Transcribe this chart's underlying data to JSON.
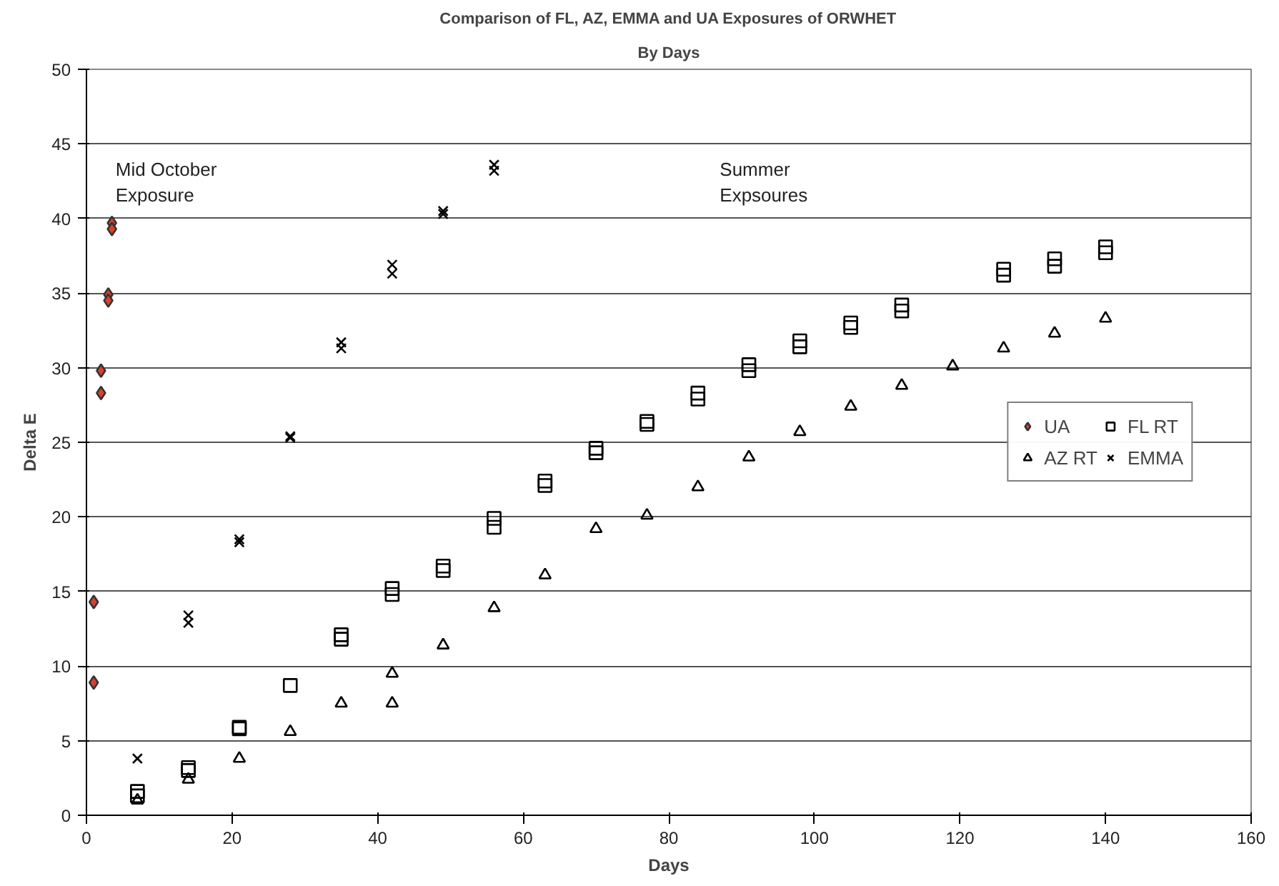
{
  "chart_data": {
    "type": "scatter",
    "title": "Comparison of FL, AZ, EMMA and UA Exposures of ORWHET",
    "subtitle": "By Days",
    "xlabel": "Days",
    "ylabel": "Delta E",
    "xlim": [
      0,
      160
    ],
    "xticks": [
      0,
      20,
      40,
      60,
      80,
      100,
      120,
      140,
      160
    ],
    "ylim": [
      0,
      50
    ],
    "yticks": [
      0,
      5,
      10,
      15,
      20,
      25,
      30,
      35,
      40,
      45,
      50
    ],
    "grid": "y",
    "legend": "right",
    "annotations": [
      "Mid October\nExposure",
      "Summer\nExpsoures"
    ],
    "series": [
      {
        "name": "UA",
        "color": "#d9402b",
        "marker": "diamond",
        "x": [
          1,
          1,
          2,
          2,
          3,
          3,
          3.5,
          3.5
        ],
        "values": [
          14.3,
          8.9,
          29.8,
          28.3,
          34.9,
          34.5,
          39.7,
          39.3
        ]
      },
      {
        "name": "FL RT",
        "color": "#000000",
        "marker": "square",
        "x": [
          7,
          7,
          14,
          14,
          21,
          21,
          28,
          35,
          35,
          42,
          42,
          49,
          49,
          56,
          56,
          63,
          63,
          70,
          70,
          77,
          77,
          84,
          84,
          91,
          91,
          98,
          98,
          105,
          105,
          112,
          112,
          126,
          126,
          133,
          133,
          140,
          140
        ],
        "values": [
          1.6,
          1.3,
          3.2,
          3.0,
          5.9,
          5.8,
          8.7,
          12.1,
          11.8,
          15.2,
          14.8,
          16.7,
          16.4,
          19.9,
          19.3,
          22.4,
          22.1,
          24.6,
          24.3,
          26.4,
          26.2,
          28.3,
          27.9,
          30.2,
          29.8,
          31.8,
          31.4,
          33.0,
          32.7,
          34.2,
          33.8,
          36.6,
          36.2,
          37.3,
          36.8,
          38.1,
          37.7
        ]
      },
      {
        "name": "AZ RT",
        "color": "#000000",
        "marker": "triangle",
        "x": [
          7,
          14,
          21,
          28,
          35,
          42,
          42,
          49,
          56,
          63,
          70,
          77,
          84,
          91,
          98,
          105,
          112,
          119,
          126,
          133,
          140
        ],
        "values": [
          1.0,
          2.4,
          3.8,
          5.6,
          7.5,
          9.5,
          7.5,
          11.4,
          13.9,
          16.1,
          19.2,
          20.1,
          22.0,
          24.0,
          25.7,
          27.4,
          28.8,
          30.1,
          31.3,
          32.3,
          33.3
        ]
      },
      {
        "name": "EMMA",
        "color": "#000000",
        "marker": "cross",
        "x": [
          7,
          14,
          14,
          21,
          21,
          28,
          28,
          35,
          35,
          42,
          42,
          49,
          49,
          56,
          56
        ],
        "values": [
          3.8,
          13.4,
          12.9,
          18.5,
          18.3,
          25.4,
          25.3,
          31.7,
          31.3,
          36.9,
          36.3,
          40.5,
          40.3,
          43.6,
          43.2
        ]
      }
    ]
  }
}
